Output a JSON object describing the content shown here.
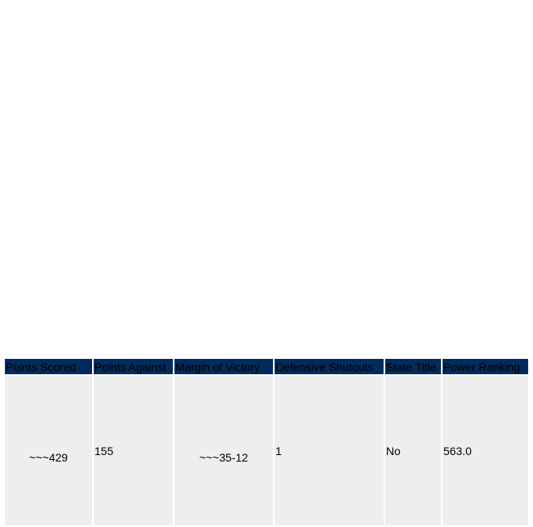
{
  "table": {
    "headers": [
      "Points Scored",
      "Points Against",
      "Margin of Victory",
      "Defensive Shutouts",
      "State Title",
      "Power Ranking"
    ],
    "rows": [
      [
        "~~~429",
        "155",
        "~~~35-12",
        "1",
        "No",
        "563.0"
      ]
    ]
  }
}
